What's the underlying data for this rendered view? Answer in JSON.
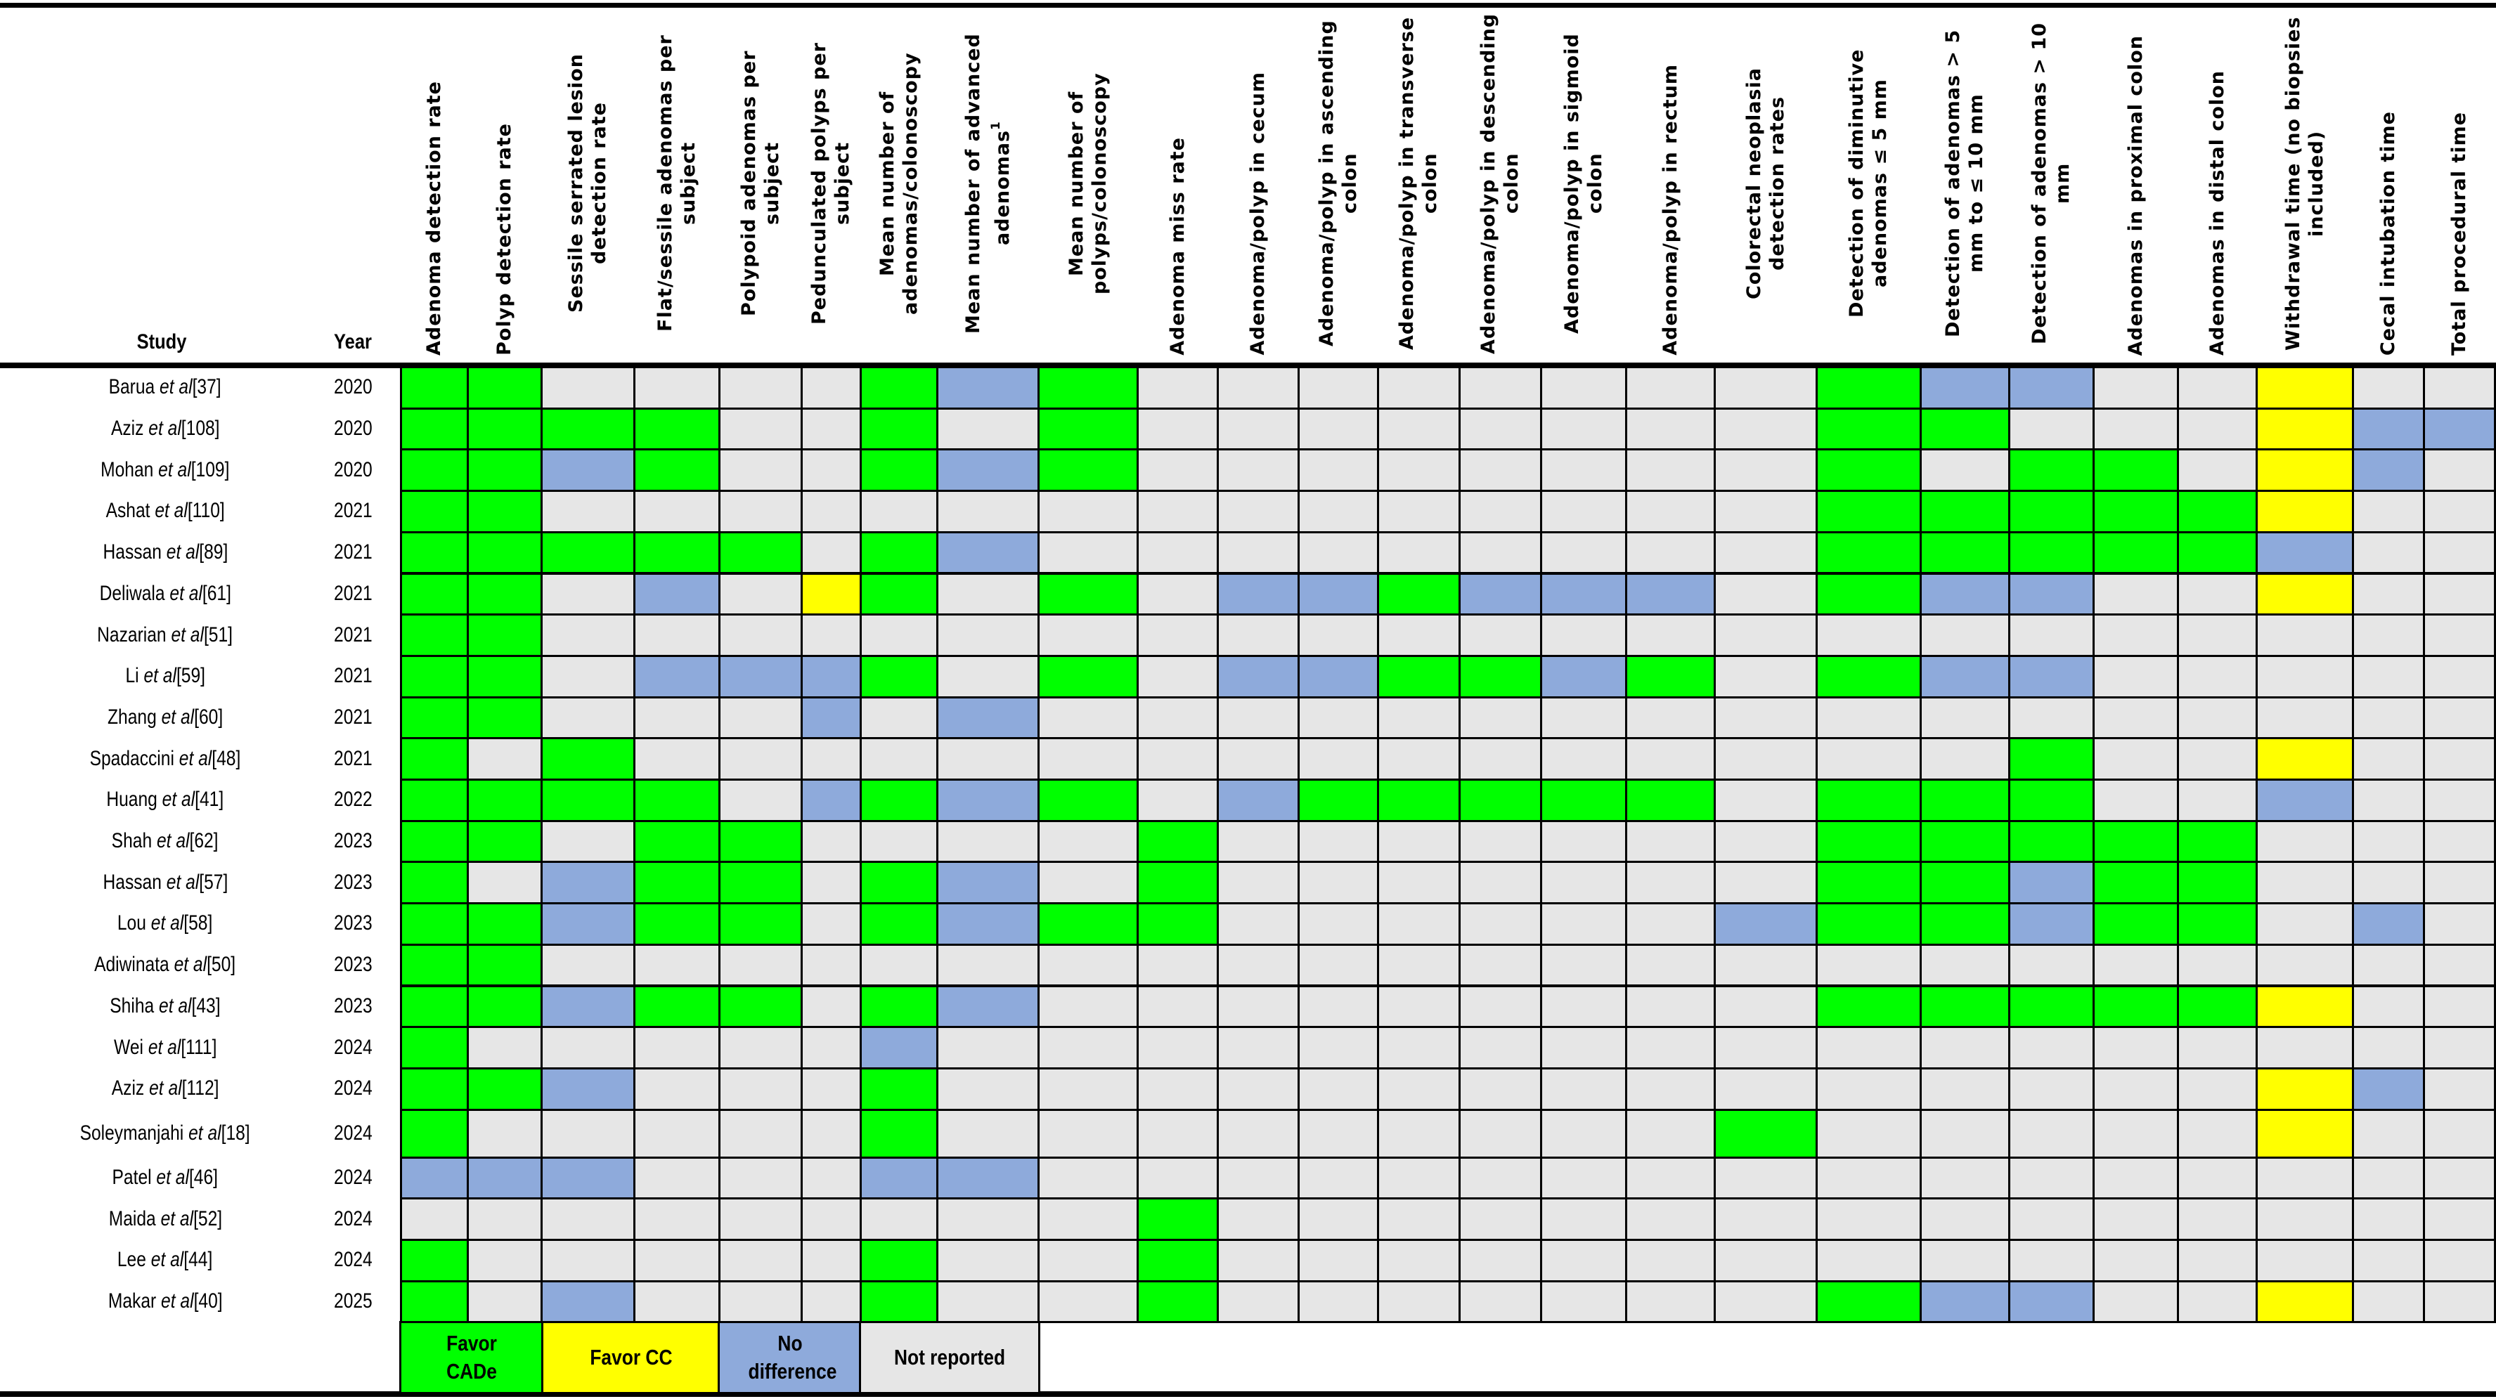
{
  "chart_data": {
    "type": "table",
    "title": "",
    "row_header_labels": {
      "study": "Study",
      "year": "Year"
    },
    "columns": [
      "Adenoma detection rate",
      "Polyp detection rate",
      "Sessile serrated lesion detection rate",
      "Flat/sessile adenomas per subject",
      "Polypoid adenomas per subject",
      "Pedunculated polyps per subject",
      "Mean number of adenomas/colonoscopy",
      "Mean number of advanced adenomas¹",
      "Mean number of polyps/colonoscopy",
      "Adenoma miss rate",
      "Adenoma/polyp in cecum",
      "Adenoma/polyp in ascending colon",
      "Adenoma/polyp in transverse colon",
      "Adenoma/polyp in descending colon",
      "Adenoma/polyp in sigmoid colon",
      "Adenoma/polyp in rectum",
      "Colorectal neoplasia detection rates",
      "Detection of diminutive adenomas ≤ 5 mm",
      "Detection of adenomas > 5 mm to ≤ 10 mm",
      "Detection of adenomas > 10 mm",
      "Adenomas in proximal colon",
      "Adenomas in distal colon",
      "Withdrawal time (no biopsies included)",
      "Cecal intubation time",
      "Total procedural time"
    ],
    "legend": [
      {
        "code": "G",
        "label": "Favor CADe",
        "color": "#00ff00"
      },
      {
        "code": "Y",
        "label": "Favor CC",
        "color": "#ffff00"
      },
      {
        "code": "B",
        "label": "No difference",
        "color": "#8eaadb"
      },
      {
        "code": "N",
        "label": "Not reported",
        "color": "#e6e6e6"
      }
    ],
    "rows": [
      {
        "author": "Barua",
        "ref": "[37]",
        "year": "2020",
        "cells": "GGNNNNGBGNNNNNNNNGBBNNYNN"
      },
      {
        "author": "Aziz",
        "ref": "[108]",
        "year": "2020",
        "cells": "GGGGNNGNGNNNNNNNNGGNNNYBB"
      },
      {
        "author": "Mohan",
        "ref": "[109]",
        "year": "2020",
        "cells": "GGBGNNGBGNNNNNNNNGNGGNYBN"
      },
      {
        "author": "Ashat",
        "ref": "[110]",
        "year": "2021",
        "cells": "GGNNNNNNNNNNNNNNNGGGGGYNN"
      },
      {
        "author": "Hassan",
        "ref": "[89]",
        "year": "2021",
        "cells": "GGGGGNGBNNNNNNNNNGGGGGBNN"
      },
      {
        "author": "Deliwala",
        "ref": "[61]",
        "year": "2021",
        "cells": "GGNBNYGNGNBBGBBBNGBBNNYNN"
      },
      {
        "author": "Nazarian",
        "ref": "[51]",
        "year": "2021",
        "cells": "GGNNNNNNNNNNNNNNNNNNNNNNN"
      },
      {
        "author": "Li",
        "ref": "[59]",
        "year": "2021",
        "cells": "GGNBBBGNGNBBGGBGNGBBNNNNN"
      },
      {
        "author": "Zhang",
        "ref": "[60]",
        "year": "2021",
        "cells": "GGNNNBNBNNNNNNNNNNNNNNNNN"
      },
      {
        "author": "Spadaccini",
        "ref": "[48]",
        "year": "2021",
        "cells": "GNGNNNNNNNNNNNNNNNNGNNYNN"
      },
      {
        "author": "Huang",
        "ref": "[41]",
        "year": "2022",
        "cells": "GGGGNBGBGNBGGGGGNGGGNNBNN"
      },
      {
        "author": "Shah",
        "ref": "[62]",
        "year": "2023",
        "cells": "GGNGGNNNNGNNNNNNNGGGGGNNN"
      },
      {
        "author": "Hassan",
        "ref": "[57]",
        "year": "2023",
        "cells": "GNBGGNGBNGNNNNNNNGGBGGNNN"
      },
      {
        "author": "Lou",
        "ref": "[58]",
        "year": "2023",
        "cells": "GGBGGNGBGGNNNNNNBGGBGGNBN"
      },
      {
        "author": "Adiwinata",
        "ref": "[50]",
        "year": "2023",
        "cells": "GGNNNNNNNNNNNNNNNNNNNNNNN"
      },
      {
        "author": "Shiha",
        "ref": "[43]",
        "year": "2023",
        "cells": "GGBGGNGBNNNNNNNNNGGGGGYNN"
      },
      {
        "author": "Wei",
        "ref": "[111]",
        "year": "2024",
        "cells": "GNNNNNBNNNNNNNNNNNNNNNNNN"
      },
      {
        "author": "Aziz",
        "ref": "[112]",
        "year": "2024",
        "cells": "GGBNNNGNNNNNNNNNNNNNNNYBN"
      },
      {
        "author": "Soleymanjahi",
        "ref": "[18]",
        "year": "2024",
        "cells": "GNNNNNGNNNNNNNNNGNNNNNYNN"
      },
      {
        "author": "Patel",
        "ref": "[46]",
        "year": "2024",
        "cells": "BBBNNNBBNNNNNNNNNNNNNNNNN"
      },
      {
        "author": "Maida",
        "ref": "[52]",
        "year": "2024",
        "cells": "NNNNNNNNNGNNNNNNNNNNNNNNN"
      },
      {
        "author": "Lee",
        "ref": "[44]",
        "year": "2024",
        "cells": "GNNNNNGNNGNNNNNNNNNNNNNNN"
      },
      {
        "author": "Makar",
        "ref": "[40]",
        "year": "2025",
        "cells": "GNBNNNGNNGNNNNNNNGBBNNYNN"
      }
    ]
  },
  "table": {
    "study_header": "Study",
    "year_header": "Year",
    "et_al": "et al",
    "legend_labels": {
      "favor_cade": "Favor CADe",
      "favor_cc": "Favor CC",
      "no_difference": "No difference",
      "not_reported": "Not reported"
    }
  }
}
